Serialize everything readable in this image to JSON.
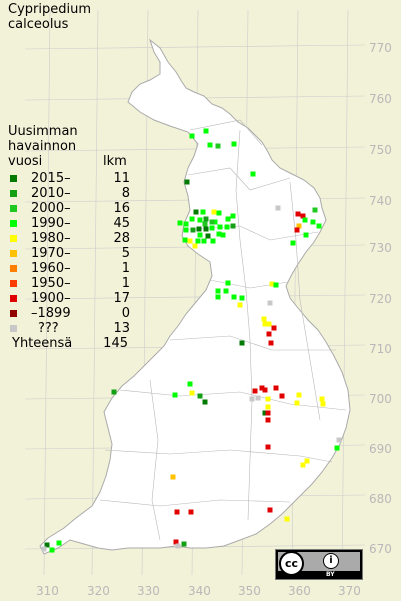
{
  "title": {
    "line1": "Cypripedium",
    "line2": "calceolus"
  },
  "legend": {
    "title_line1": "Uusimman",
    "title_line2": "havainnon",
    "title_line3": "vuosi",
    "count_header": "lkm",
    "rows": [
      {
        "label": "2015–",
        "count": "11",
        "color": "#007a00"
      },
      {
        "label": "2010–",
        "count": "8",
        "color": "#14a014"
      },
      {
        "label": "2000–",
        "count": "16",
        "color": "#1ec81e"
      },
      {
        "label": "1990–",
        "count": "45",
        "color": "#00ff00"
      },
      {
        "label": "1980–",
        "count": "28",
        "color": "#ffff00"
      },
      {
        "label": "1970–",
        "count": "5",
        "color": "#ffc000"
      },
      {
        "label": "1960–",
        "count": "1",
        "color": "#ff8000"
      },
      {
        "label": "1950–",
        "count": "1",
        "color": "#ff3c00"
      },
      {
        "label": "1900–",
        "count": "17",
        "color": "#e00000"
      },
      {
        "label": "–1899",
        "count": "0",
        "color": "#900000"
      },
      {
        "label": "???",
        "count": "13",
        "color": "#c8c8c8"
      }
    ],
    "total_label": "Yhteensä",
    "total_count": "145"
  },
  "axes": {
    "y_labels": [
      "770",
      "760",
      "750",
      "740",
      "730",
      "720",
      "710",
      "700",
      "690",
      "680",
      "670"
    ],
    "x_labels": [
      "310",
      "320",
      "330",
      "340",
      "350",
      "360",
      "370"
    ]
  },
  "license": {
    "cc": "cc",
    "by_symbol": "i",
    "by_text": "BY"
  },
  "colors": {
    "background": "#f2f2d9",
    "land": "#ffffff",
    "grid": "#c8c8c8",
    "border": "#999999"
  }
}
